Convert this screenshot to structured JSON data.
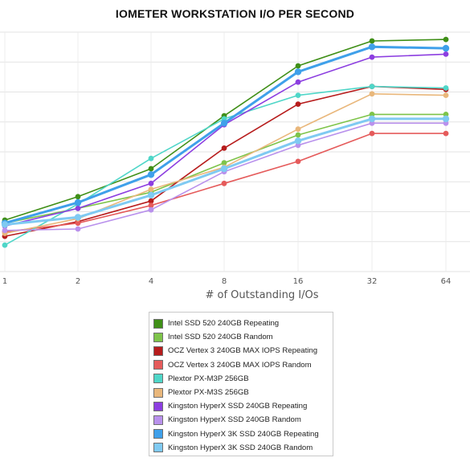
{
  "chart_data": {
    "type": "line",
    "title": "IOMETER WORKSTATION I/O PER SECOND",
    "xlabel": "# of Outstanding I/Os",
    "ylabel": "",
    "x": [
      1,
      2,
      4,
      8,
      16,
      32,
      64
    ],
    "x_ticks": [
      "1",
      "2",
      "4",
      "8",
      "16",
      "32",
      "64"
    ],
    "grid": true,
    "legend_position": "bottom",
    "series": [
      {
        "name": "Intel SSD 520 240GB Repeating",
        "color": "#3f8f17",
        "values": [
          0.5,
          2.1,
          4.0,
          7.6,
          11.0,
          12.7,
          12.8
        ]
      },
      {
        "name": "Intel SSD 520 240GB Random",
        "color": "#7ec44a",
        "values": [
          0.3,
          1.3,
          2.4,
          4.4,
          6.3,
          7.7,
          7.7
        ]
      },
      {
        "name": "OCZ Vertex 3 240GB MAX IOPS Repeating",
        "color": "#b71c1c",
        "values": [
          -0.6,
          0.4,
          1.8,
          5.4,
          8.4,
          9.6,
          9.4
        ]
      },
      {
        "name": "OCZ Vertex 3 240GB MAX IOPS Random",
        "color": "#e55b5b",
        "values": [
          -0.3,
          0.3,
          1.5,
          3.0,
          4.5,
          6.4,
          6.4
        ]
      },
      {
        "name": "Plextor PX-M3P 256GB",
        "color": "#4fd6c8",
        "values": [
          -1.2,
          1.6,
          4.7,
          7.4,
          9.0,
          9.6,
          9.5
        ]
      },
      {
        "name": "Plextor PX-M3S 256GB",
        "color": "#e9b77b",
        "values": [
          -0.4,
          0.6,
          2.6,
          4.1,
          6.7,
          9.1,
          9.0
        ]
      },
      {
        "name": "Kingston HyperX SSD 240GB Repeating",
        "color": "#8c3ee0",
        "values": [
          0.1,
          1.3,
          3.0,
          7.0,
          9.9,
          11.6,
          11.8
        ]
      },
      {
        "name": "Kingston HyperX SSD 240GB Random",
        "color": "#b991ec",
        "values": [
          -0.2,
          -0.1,
          1.2,
          3.8,
          5.6,
          7.1,
          7.1
        ]
      },
      {
        "name": "Kingston HyperX 3K SSD 240GB Repeating",
        "color": "#3fa0ea",
        "values": [
          0.3,
          1.7,
          3.6,
          7.1,
          10.6,
          12.3,
          12.2
        ]
      },
      {
        "name": "Kingston HyperX 3K SSD 240GB Random",
        "color": "#7fcaf2",
        "values": [
          0.2,
          0.7,
          2.2,
          4.0,
          5.9,
          7.4,
          7.4
        ]
      }
    ]
  }
}
